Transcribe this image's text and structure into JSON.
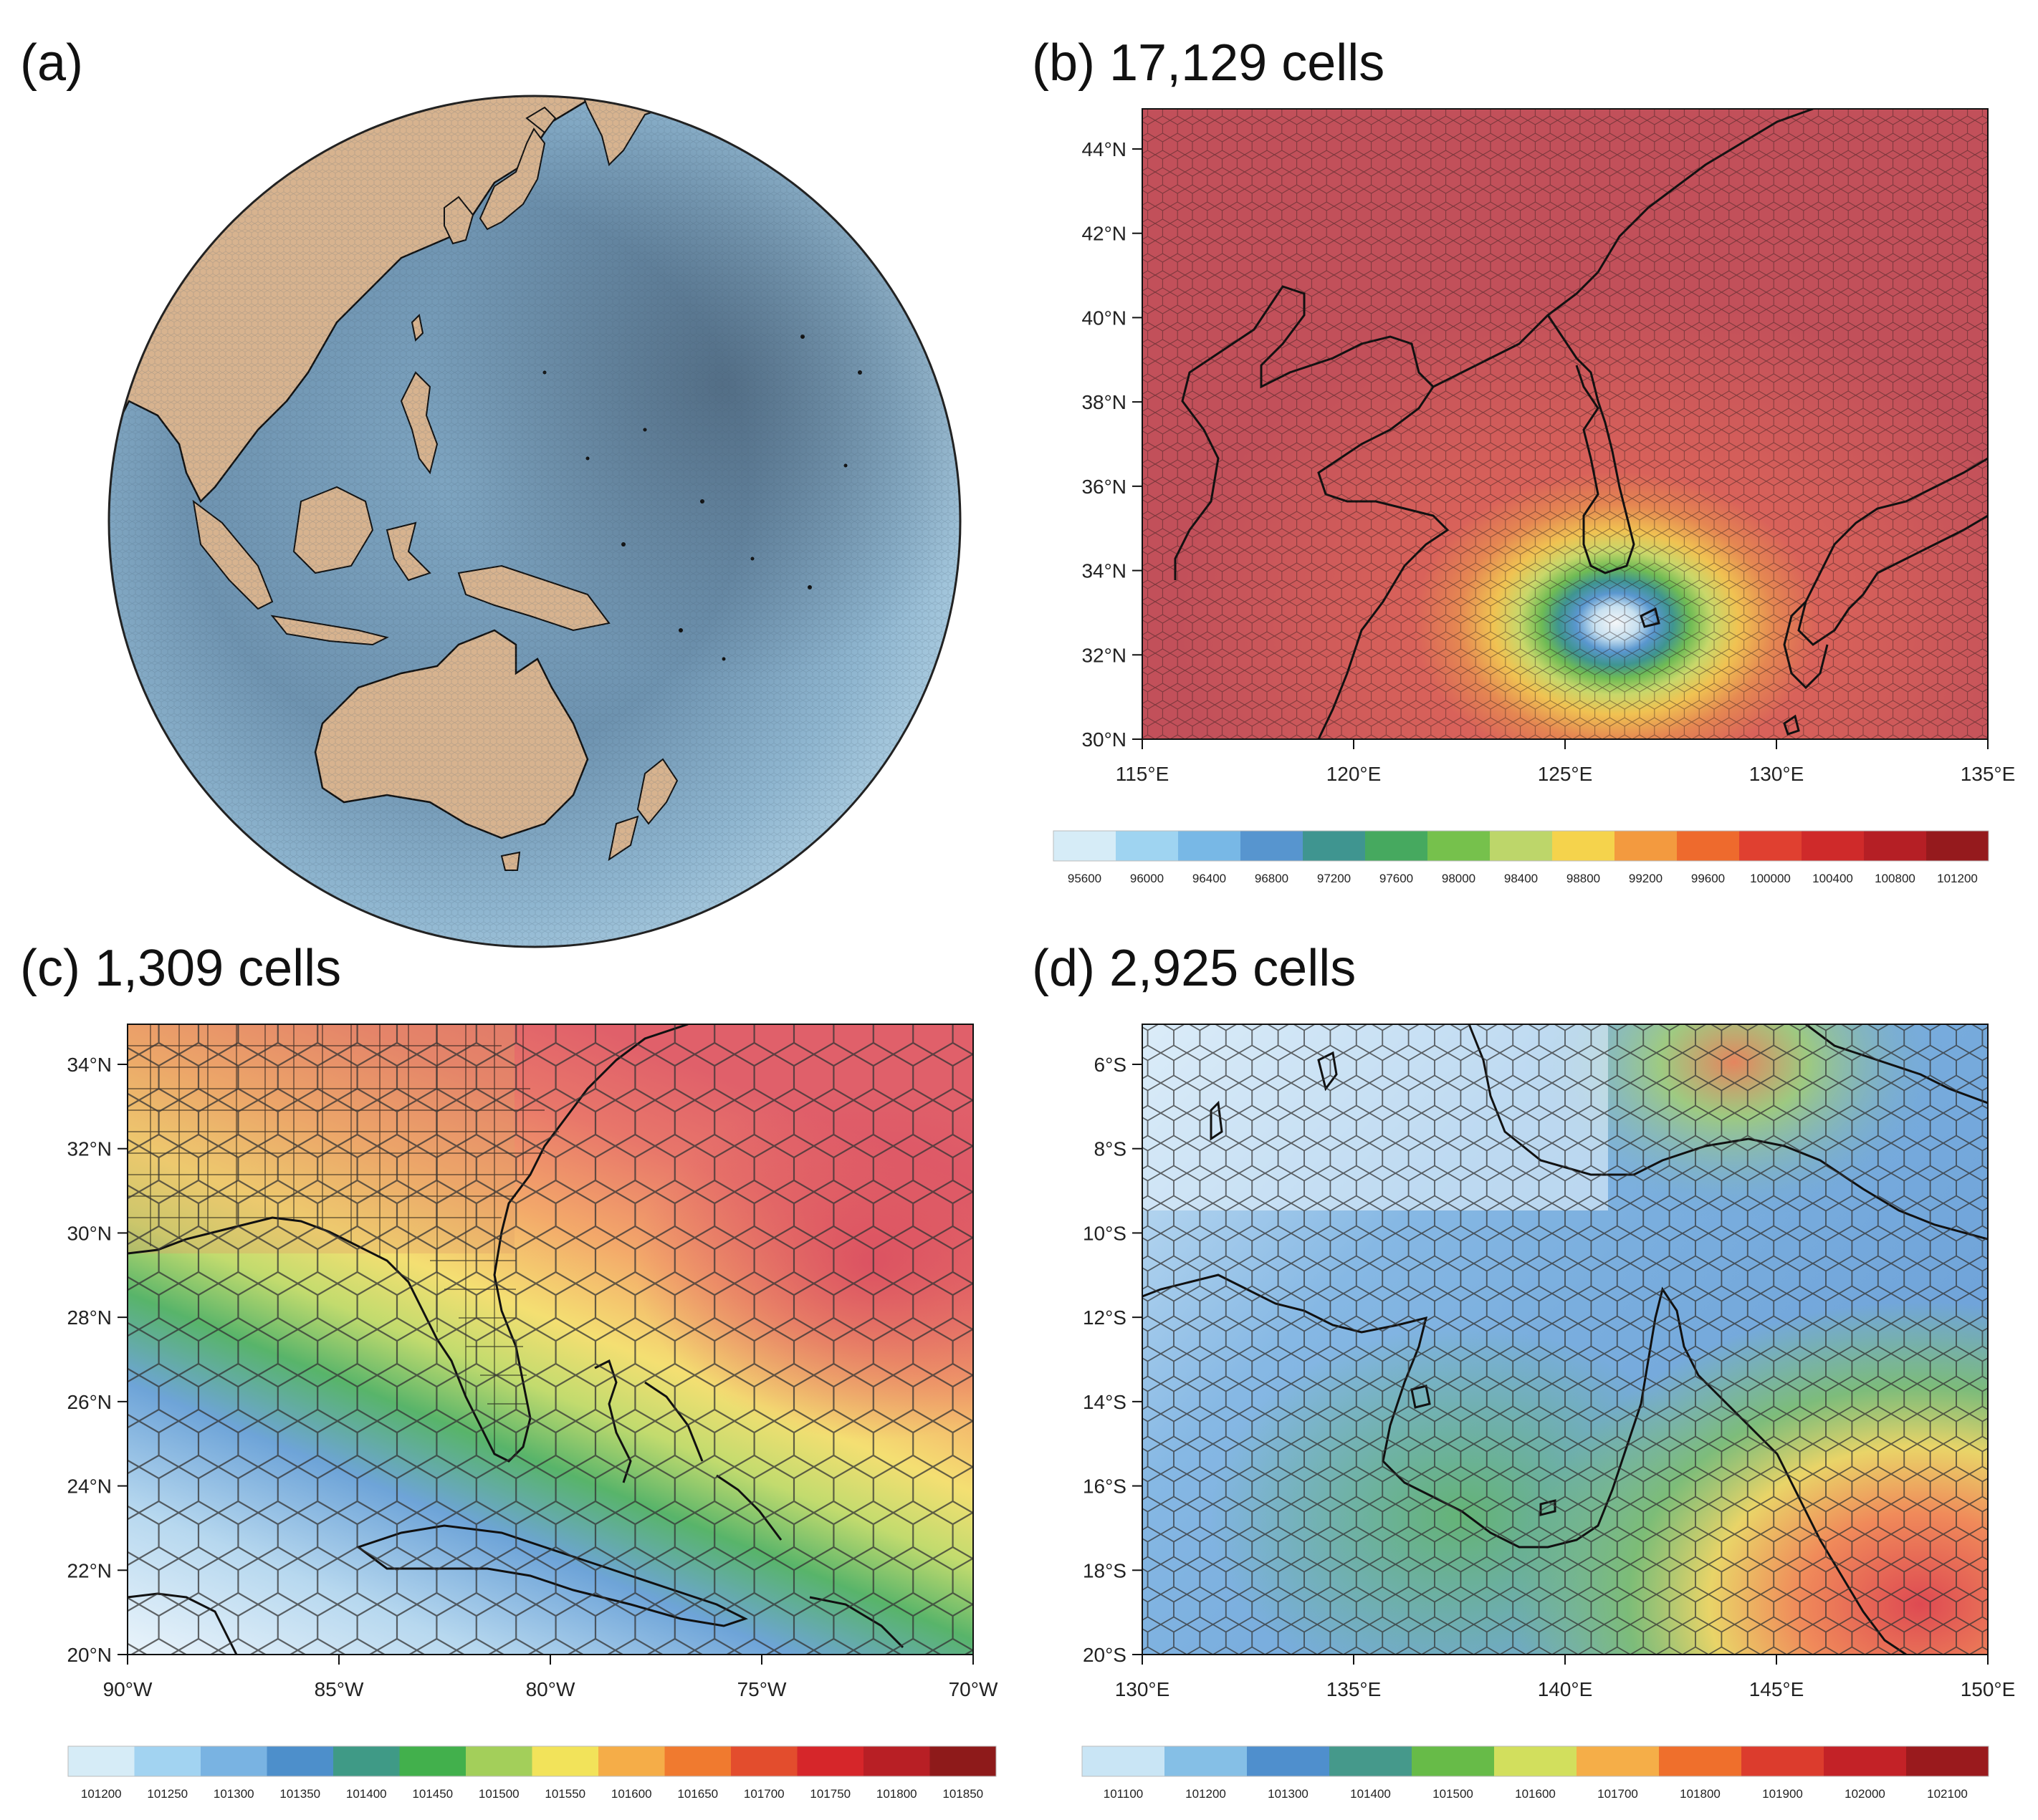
{
  "figure": {
    "panels": [
      {
        "id": "a",
        "title": "(a)",
        "view": "globe, Asia-Pacific / Australia",
        "ocean_color": "#7fa3bd",
        "land_color": "#d7b38f"
      },
      {
        "id": "b",
        "title": "(b) 17,129 cells",
        "x_ticks": [
          "115°E",
          "120°E",
          "125°E",
          "130°E",
          "135°E"
        ],
        "y_ticks": [
          "44°N",
          "42°N",
          "40°N",
          "38°N",
          "36°N",
          "34°N",
          "32°N",
          "30°N"
        ],
        "colorbar": {
          "labels": [
            "95600",
            "96000",
            "96400",
            "96800",
            "97200",
            "97600",
            "98000",
            "98400",
            "98800",
            "99200",
            "99600",
            "100000",
            "100400",
            "100800",
            "101200"
          ],
          "colors": [
            "#d6ecf7",
            "#9fd4f1",
            "#78b8e6",
            "#5795cf",
            "#3f9590",
            "#46a95f",
            "#76c14c",
            "#bdd66a",
            "#f5d34c",
            "#f39a3f",
            "#ee6a2d",
            "#e04030",
            "#cf2a2a",
            "#b51f25",
            "#951a1d"
          ]
        }
      },
      {
        "id": "c",
        "title": "(c) 1,309 cells",
        "x_ticks": [
          "90°W",
          "85°W",
          "80°W",
          "75°W",
          "70°W"
        ],
        "y_ticks": [
          "34°N",
          "32°N",
          "30°N",
          "28°N",
          "26°N",
          "24°N",
          "22°N",
          "20°N"
        ],
        "colorbar": {
          "labels": [
            "101200",
            "101250",
            "101300",
            "101350",
            "101400",
            "101450",
            "101500",
            "101550",
            "101600",
            "101650",
            "101700",
            "101750",
            "101800",
            "101850"
          ],
          "colors": [
            "#d6ecf7",
            "#a2d3f1",
            "#79b3e2",
            "#4d8fcb",
            "#3f9a86",
            "#42b04c",
            "#a3cf5a",
            "#f2e35a",
            "#f5ad48",
            "#f07a2f",
            "#e34d2d",
            "#d6262a",
            "#b81f25",
            "#8e1a1a"
          ]
        }
      },
      {
        "id": "d",
        "title": "(d) 2,925 cells",
        "x_ticks": [
          "130°E",
          "135°E",
          "140°E",
          "145°E",
          "150°E"
        ],
        "y_ticks": [
          "6°S",
          "8°S",
          "10°S",
          "12°S",
          "14°S",
          "16°S",
          "18°S",
          "20°S"
        ],
        "colorbar": {
          "labels": [
            "101100",
            "101200",
            "101300",
            "101400",
            "101500",
            "101600",
            "101700",
            "101800",
            "101900",
            "102000",
            "102100"
          ],
          "colors": [
            "#c9e5f5",
            "#85bfe6",
            "#4f8fcd",
            "#45998b",
            "#67bb48",
            "#d2df5d",
            "#f5ae48",
            "#ef6f2c",
            "#dc3c2d",
            "#c32227",
            "#9a1a1d"
          ]
        }
      }
    ]
  }
}
